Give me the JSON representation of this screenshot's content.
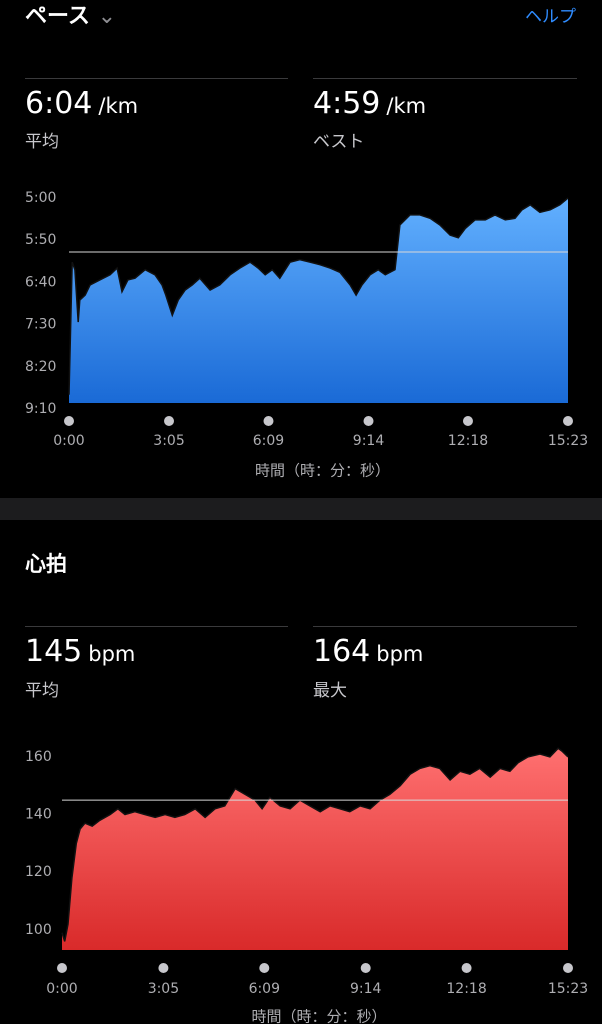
{
  "header": {
    "title": "ペース",
    "help": "ヘルプ"
  },
  "pace_stats": [
    {
      "value": "6:04",
      "unit": "/km",
      "label": "平均"
    },
    {
      "value": "4:59",
      "unit": "/km",
      "label": "ベスト"
    }
  ],
  "heart_title": "心拍",
  "heart_stats": [
    {
      "value": "145",
      "unit": "bpm",
      "label": "平均"
    },
    {
      "value": "164",
      "unit": "bpm",
      "label": "最大"
    }
  ],
  "chart_data": [
    {
      "type": "area",
      "xlabel": "時間（時：分：秒）",
      "x": [
        0,
        6,
        11,
        17,
        20,
        30,
        39,
        57,
        76,
        89,
        98,
        109,
        122,
        141,
        159,
        172,
        179,
        191,
        202,
        215,
        228,
        242,
        261,
        279,
        298,
        316,
        335,
        350,
        363,
        376,
        390,
        409,
        427,
        446,
        464,
        483,
        501,
        520,
        531,
        542,
        557,
        572,
        585,
        603,
        612,
        631,
        649,
        668,
        686,
        705,
        720,
        733,
        751,
        770,
        788,
        807,
        825,
        838,
        853,
        871,
        890,
        908,
        923
      ],
      "values": [
        533,
        376,
        385,
        447,
        421,
        415,
        403,
        397,
        391,
        383,
        411,
        397,
        395,
        385,
        391,
        403,
        415,
        439,
        421,
        409,
        403,
        395,
        409,
        403,
        391,
        383,
        376,
        383,
        391,
        385,
        395,
        376,
        373,
        376,
        379,
        383,
        388,
        403,
        415,
        403,
        391,
        385,
        391,
        385,
        332,
        320,
        320,
        324,
        332,
        344,
        347,
        336,
        326,
        326,
        320,
        326,
        324,
        314,
        308,
        317,
        314,
        308,
        300
      ],
      "xlim": [
        0,
        923
      ],
      "xticks": [
        {
          "value": 0,
          "label": "0:00"
        },
        {
          "value": 185,
          "label": "3:05"
        },
        {
          "value": 369,
          "label": "6:09"
        },
        {
          "value": 554,
          "label": "9:14"
        },
        {
          "value": 738,
          "label": "12:18"
        },
        {
          "value": 923,
          "label": "15:23"
        }
      ],
      "ylim": [
        300,
        550
      ],
      "yticks": [
        {
          "value": 300,
          "label": "5:00"
        },
        {
          "value": 350,
          "label": "5:50"
        },
        {
          "value": 400,
          "label": "6:40"
        },
        {
          "value": 450,
          "label": "7:30"
        },
        {
          "value": 500,
          "label": "8:20"
        },
        {
          "value": 550,
          "label": "9:10"
        }
      ],
      "y_inverted": true,
      "average": 364,
      "gradient": [
        "#62b0ff",
        "#1a6ad6"
      ]
    },
    {
      "type": "area",
      "xlabel": "時間（時：分：秒）",
      "x": [
        0,
        5,
        11,
        18,
        26,
        33,
        42,
        55,
        69,
        88,
        102,
        115,
        133,
        151,
        170,
        188,
        206,
        224,
        243,
        261,
        279,
        297,
        316,
        334,
        352,
        365,
        379,
        398,
        416,
        434,
        452,
        471,
        489,
        507,
        525,
        544,
        562,
        580,
        598,
        617,
        635,
        653,
        671,
        689,
        708,
        726,
        744,
        762,
        781,
        799,
        817,
        832,
        850,
        872,
        890,
        905,
        912,
        923
      ],
      "values": [
        99,
        96,
        102,
        118,
        130,
        135,
        137,
        136,
        138,
        140,
        142,
        140,
        141,
        140,
        139,
        140,
        139,
        140,
        142,
        139,
        142,
        143,
        149,
        147,
        145,
        142,
        146,
        143,
        142,
        145,
        143,
        141,
        143,
        142,
        141,
        143,
        142,
        145,
        147,
        150,
        154,
        156,
        157,
        156,
        152,
        155,
        154,
        156,
        153,
        156,
        155,
        158,
        160,
        161,
        160,
        163,
        162,
        160
      ],
      "xlim": [
        0,
        923
      ],
      "xticks": [
        {
          "value": 0,
          "label": "0:00"
        },
        {
          "value": 185,
          "label": "3:05"
        },
        {
          "value": 369,
          "label": "6:09"
        },
        {
          "value": 554,
          "label": "9:14"
        },
        {
          "value": 738,
          "label": "12:18"
        },
        {
          "value": 923,
          "label": "15:23"
        }
      ],
      "ylim": [
        93,
        165
      ],
      "yticks": [
        100,
        120,
        140,
        160
      ],
      "y_inverted": false,
      "average": 145,
      "gradient": [
        "#ff7070",
        "#d92a2a"
      ]
    }
  ]
}
